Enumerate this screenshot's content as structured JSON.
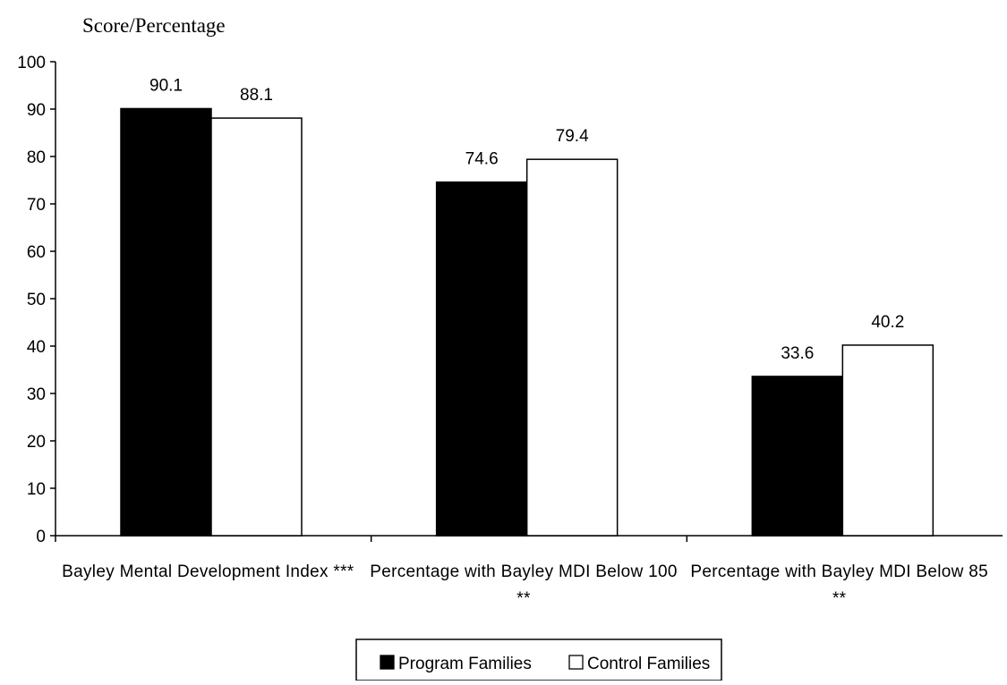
{
  "chart_data": {
    "type": "bar",
    "title": "",
    "ylabel": "Score/Percentage",
    "xlabel": "",
    "ylim": [
      0,
      100
    ],
    "yticks": [
      0,
      10,
      20,
      30,
      40,
      50,
      60,
      70,
      80,
      90,
      100
    ],
    "grid": false,
    "legend_position": "bottom-center",
    "categories": [
      {
        "lines": [
          "Bayley Mental Development Index ***"
        ]
      },
      {
        "lines": [
          "Percentage with Bayley MDI Below 100",
          "**"
        ]
      },
      {
        "lines": [
          "Percentage with Bayley MDI Below 85",
          "**"
        ]
      }
    ],
    "series": [
      {
        "name": "Program Families",
        "values": [
          90.1,
          74.6,
          33.6
        ],
        "labels": [
          "90.1",
          "74.6",
          "33.6"
        ],
        "fill": "#000000",
        "stroke": "#000000"
      },
      {
        "name": "Control Families",
        "values": [
          88.1,
          79.4,
          40.2
        ],
        "labels": [
          "88.1",
          "79.4",
          "40.2"
        ],
        "fill": "#ffffff",
        "stroke": "#000000"
      }
    ]
  }
}
